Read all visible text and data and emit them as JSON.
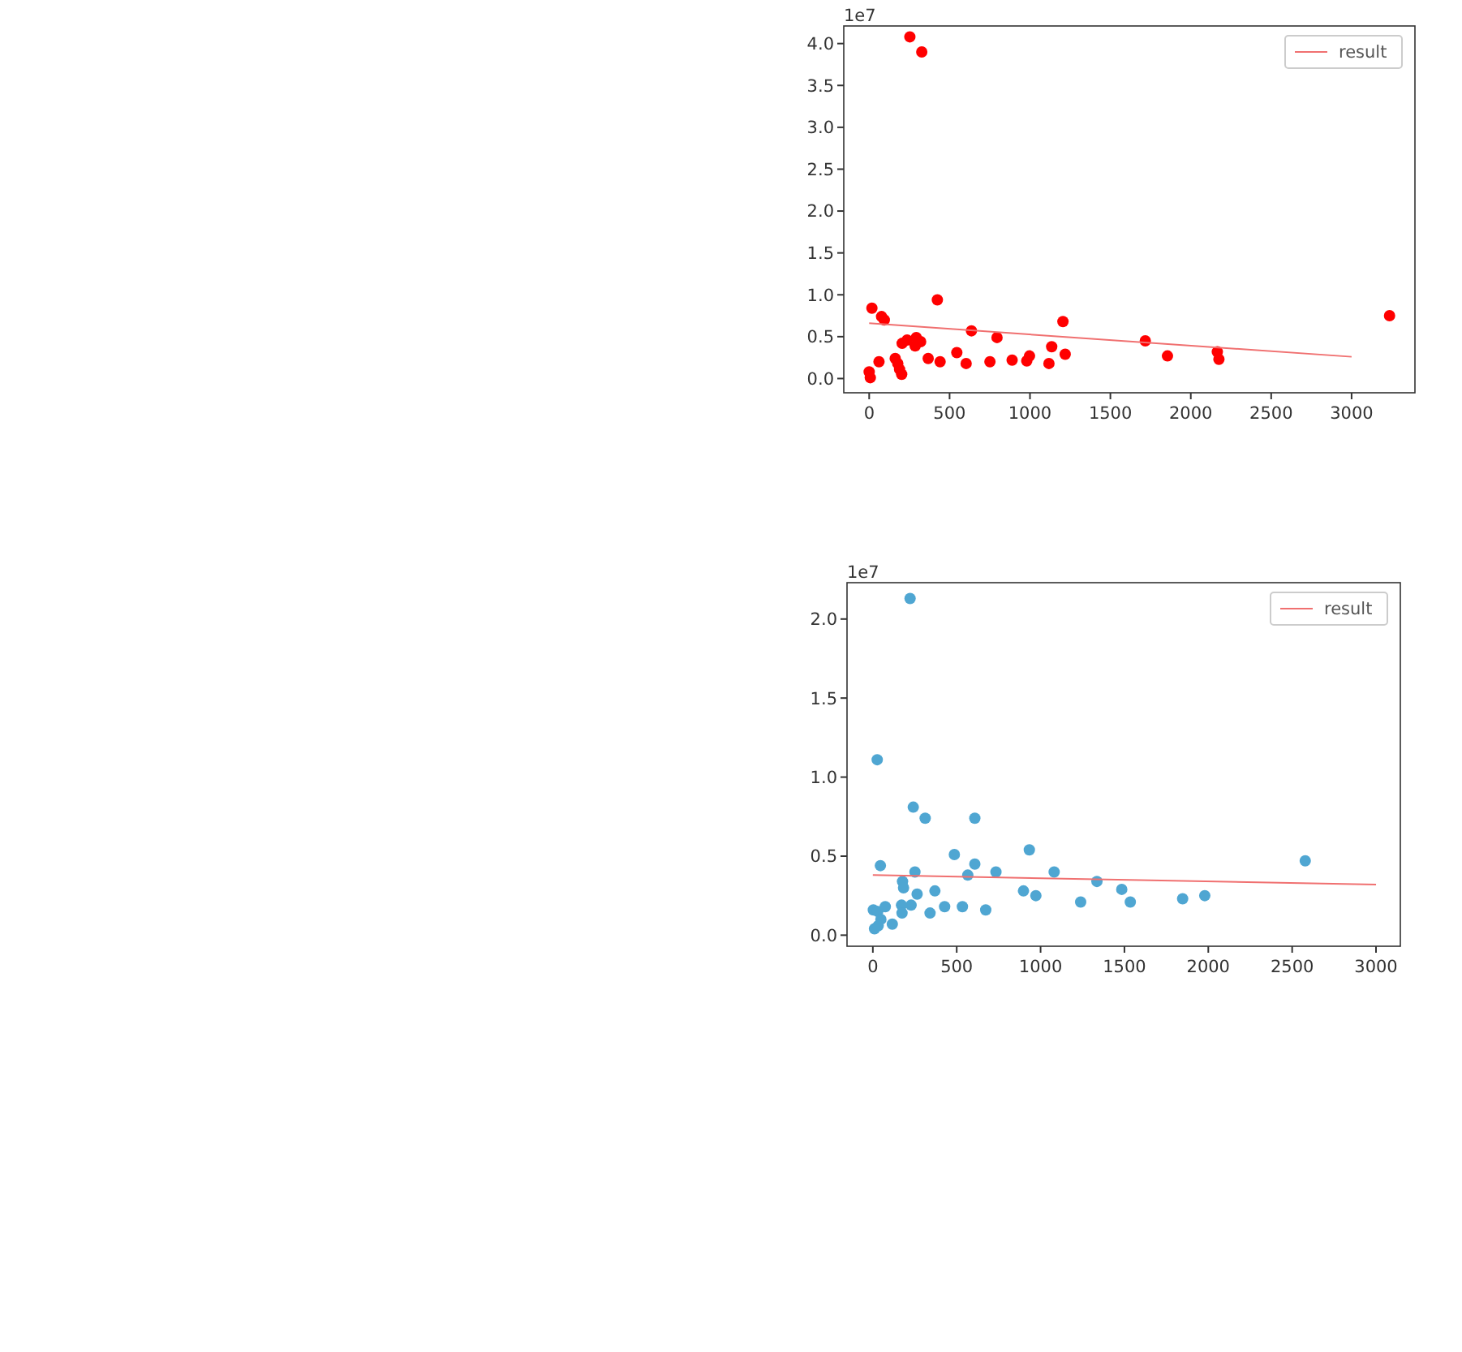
{
  "chart_data": [
    {
      "type": "scatter",
      "annotations": [
        "1e7"
      ],
      "xlim": [
        -158,
        3394
      ],
      "xticks": [
        0,
        500,
        1000,
        1500,
        2000,
        2500,
        3000
      ],
      "ylim": [
        -0.17,
        4.21
      ],
      "yticks": [
        {
          "value": 0,
          "label": "0.0"
        },
        0.5,
        {
          "value": 1,
          "label": "1.0"
        },
        1.5,
        {
          "value": 2,
          "label": "2.0"
        },
        2.5,
        {
          "value": 3,
          "label": "3.0"
        },
        3.5,
        {
          "value": 4,
          "label": "4.0"
        }
      ],
      "legend": "top right",
      "series": [
        {
          "marker": "circle",
          "color": "#ff0000",
          "x": [
            253,
            327,
            424,
            17,
            77,
            94,
            0,
            7,
            61,
            162,
            178,
            189,
            202,
            205,
            236,
            293,
            286,
            320,
            367,
            441,
            545,
            603,
            636,
            751,
            795,
            889,
            980,
            997,
            1118,
            1135,
            1205,
            1219,
            1717,
            1855,
            2165,
            2175,
            3236
          ],
          "values": [
            4.08,
            3.9,
            0.94,
            0.84,
            0.74,
            0.7,
            0.08,
            0.01,
            0.2,
            0.24,
            0.18,
            0.11,
            0.05,
            0.42,
            0.46,
            0.49,
            0.39,
            0.44,
            0.24,
            0.2,
            0.31,
            0.18,
            0.57,
            0.2,
            0.49,
            0.22,
            0.21,
            0.27,
            0.18,
            0.38,
            0.68,
            0.29,
            0.45,
            0.27,
            0.32,
            0.23,
            0.75
          ]
        },
        {
          "type": "line",
          "name": "result",
          "color": "#f07070",
          "x": [
            0,
            3000
          ],
          "values": [
            0.66,
            0.26
          ]
        }
      ]
    },
    {
      "type": "scatter",
      "annotations": [
        "1e7"
      ],
      "xlim": [
        -154,
        3145
      ],
      "xticks": [
        0,
        500,
        1000,
        1500,
        2000,
        2500,
        3000
      ],
      "ylim": [
        -0.07,
        2.23
      ],
      "yticks": [
        {
          "value": 0,
          "label": "0.0"
        },
        0.5,
        {
          "value": 1,
          "label": "1.0"
        },
        1.5,
        {
          "value": 2,
          "label": "2.0"
        }
      ],
      "legend": "top right",
      "series": [
        {
          "marker": "circle",
          "color": "#4fa6d2",
          "x": [
            222,
            26,
            241,
            312,
            608,
            933,
            486,
            45,
            608,
            2578,
            251,
            734,
            1081,
            566,
            1336,
            177,
            183,
            1484,
            264,
            370,
            898,
            972,
            1535,
            1847,
            1979,
            1239,
            228,
            171,
            428,
            534,
            174,
            341,
            673,
            3,
            29,
            74,
            48,
            116,
            10,
            32
          ],
          "values": [
            2.13,
            1.11,
            0.81,
            0.74,
            0.74,
            0.54,
            0.51,
            0.44,
            0.45,
            0.47,
            0.4,
            0.4,
            0.4,
            0.38,
            0.34,
            0.34,
            0.3,
            0.29,
            0.26,
            0.28,
            0.28,
            0.25,
            0.21,
            0.23,
            0.25,
            0.21,
            0.19,
            0.19,
            0.18,
            0.18,
            0.14,
            0.14,
            0.16,
            0.16,
            0.15,
            0.18,
            0.1,
            0.07,
            0.04,
            0.06
          ]
        },
        {
          "type": "line",
          "name": "result",
          "color": "#f07070",
          "x": [
            0,
            3000
          ],
          "values": [
            0.38,
            0.32
          ]
        }
      ]
    }
  ]
}
